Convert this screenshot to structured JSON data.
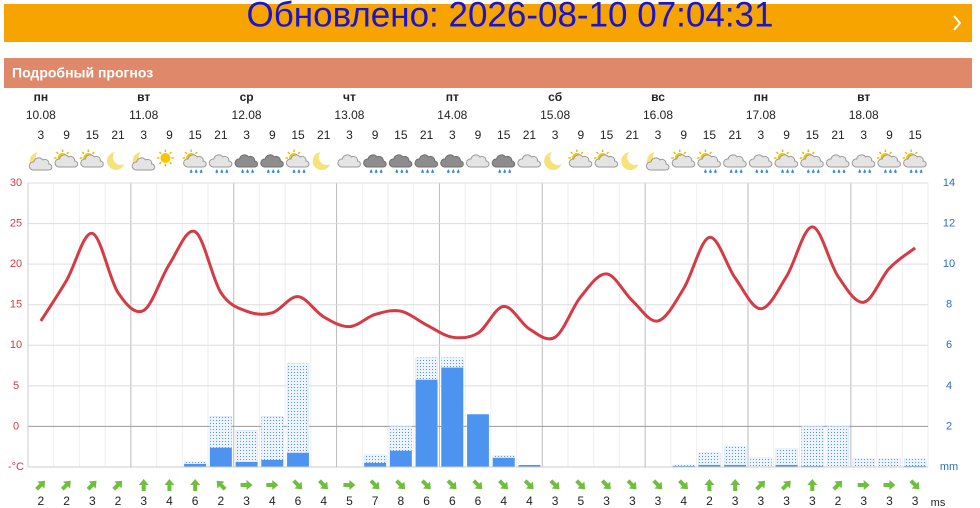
{
  "banner": {
    "text": "Обновлено: 2026-08-10 07:04:31"
  },
  "header": {
    "title": "Подробный прогноз"
  },
  "days": [
    {
      "name": "пн",
      "date": "10.08"
    },
    {
      "name": "вт",
      "date": "11.08"
    },
    {
      "name": "ср",
      "date": "12.08"
    },
    {
      "name": "чт",
      "date": "13.08"
    },
    {
      "name": "пт",
      "date": "14.08"
    },
    {
      "name": "сб",
      "date": "15.08"
    },
    {
      "name": "вс",
      "date": "16.08"
    },
    {
      "name": "пн",
      "date": "17.08"
    },
    {
      "name": "вт",
      "date": "18.08"
    }
  ],
  "chart_data": {
    "type": "line",
    "categories": [
      "3",
      "9",
      "15",
      "21",
      "3",
      "9",
      "15",
      "21",
      "3",
      "9",
      "15",
      "21",
      "3",
      "9",
      "15",
      "21",
      "3",
      "9",
      "15",
      "21",
      "3",
      "9",
      "15",
      "21",
      "3",
      "9",
      "15",
      "21",
      "3",
      "9",
      "15",
      "21",
      "3",
      "9",
      "15"
    ],
    "series": [
      {
        "color": "#d63a44",
        "values": [
          13,
          18,
          23.8,
          16.5,
          14.3,
          20,
          24,
          16.5,
          14.2,
          14,
          16,
          13.5,
          12.3,
          13.8,
          14.2,
          12.5,
          11,
          11.5,
          14.8,
          12,
          11,
          16,
          18.8,
          15.5,
          13,
          17,
          23.3,
          18.3,
          14.5,
          18.5,
          24.6,
          18.5,
          15.3,
          19.5,
          22
        ]
      },
      {
        "type": "bar",
        "axis": "y2",
        "color": "#4d94f0",
        "values": [
          0,
          0,
          0,
          0,
          0,
          0,
          0.15,
          0.95,
          0.25,
          0.35,
          0.7,
          0,
          0,
          0.2,
          0.8,
          4.3,
          4.9,
          2.6,
          0.45,
          0.1,
          0,
          0,
          0,
          0,
          0,
          0.05,
          0.1,
          0.1,
          0,
          0.1,
          0.05,
          0,
          0,
          0,
          0.05
        ]
      },
      {
        "type": "bar-range",
        "axis": "y2",
        "color": "#4d94f0",
        "values": [
          null,
          null,
          null,
          null,
          null,
          null,
          0.25,
          2.5,
          1.8,
          2.5,
          5.1,
          null,
          null,
          0.6,
          2.0,
          5.4,
          5.4,
          null,
          0.55,
          null,
          null,
          null,
          null,
          null,
          null,
          0.1,
          0.7,
          1.0,
          0.45,
          0.9,
          2.0,
          2.0,
          0.4,
          0.4,
          0.4
        ]
      }
    ],
    "ylim": [
      -5,
      30
    ],
    "yticks": [
      {
        "value": -5,
        "label": "-°C"
      },
      0,
      5,
      10,
      15,
      20,
      25,
      30
    ],
    "y2lim": [
      0,
      14
    ],
    "y2ticks": [
      {
        "value": 0,
        "label": "mm"
      },
      2,
      4,
      6,
      8,
      10,
      12,
      14
    ],
    "grid": true
  },
  "wind": {
    "unit": "ms",
    "speeds": [
      2,
      2,
      3,
      2,
      3,
      4,
      6,
      2,
      3,
      4,
      6,
      4,
      5,
      7,
      8,
      6,
      6,
      6,
      4,
      4,
      3,
      5,
      3,
      3,
      3,
      4,
      2,
      3,
      3,
      3,
      3,
      2,
      3,
      3,
      3
    ]
  }
}
